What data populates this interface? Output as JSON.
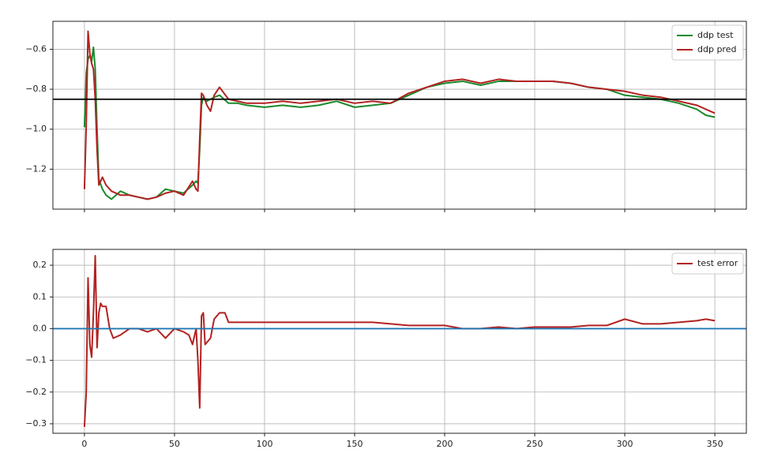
{
  "chart_data": [
    {
      "type": "line",
      "x": [
        0,
        1,
        2,
        3,
        4,
        5,
        6,
        7,
        8,
        10,
        12,
        15,
        20,
        25,
        30,
        35,
        40,
        45,
        50,
        55,
        60,
        62,
        63,
        64,
        65,
        66,
        68,
        70,
        72,
        75,
        80,
        85,
        90,
        100,
        110,
        120,
        130,
        140,
        150,
        160,
        170,
        180,
        190,
        200,
        210,
        220,
        230,
        240,
        250,
        260,
        270,
        280,
        290,
        300,
        310,
        320,
        330,
        340,
        345,
        350
      ],
      "series": [
        {
          "name": "ddp test",
          "color": "#1a8a2a",
          "values": [
            -0.99,
            -0.72,
            -0.65,
            -0.63,
            -0.66,
            -0.59,
            -0.7,
            -1.0,
            -1.25,
            -1.3,
            -1.33,
            -1.35,
            -1.31,
            -1.33,
            -1.34,
            -1.35,
            -1.34,
            -1.3,
            -1.31,
            -1.32,
            -1.28,
            -1.26,
            -1.27,
            -1.1,
            -0.88,
            -0.84,
            -0.86,
            -0.85,
            -0.84,
            -0.83,
            -0.87,
            -0.87,
            -0.88,
            -0.89,
            -0.88,
            -0.89,
            -0.88,
            -0.86,
            -0.89,
            -0.88,
            -0.87,
            -0.83,
            -0.79,
            -0.77,
            -0.76,
            -0.78,
            -0.76,
            -0.76,
            -0.76,
            -0.76,
            -0.77,
            -0.79,
            -0.8,
            -0.83,
            -0.84,
            -0.85,
            -0.87,
            -0.9,
            -0.93,
            -0.94
          ]
        },
        {
          "name": "ddp pred",
          "color": "#b22222",
          "values": [
            -1.3,
            -0.98,
            -0.51,
            -0.62,
            -0.67,
            -0.7,
            -0.85,
            -1.1,
            -1.28,
            -1.24,
            -1.28,
            -1.31,
            -1.33,
            -1.33,
            -1.34,
            -1.35,
            -1.34,
            -1.32,
            -1.31,
            -1.33,
            -1.26,
            -1.3,
            -1.31,
            -1.05,
            -0.82,
            -0.83,
            -0.88,
            -0.91,
            -0.83,
            -0.79,
            -0.85,
            -0.86,
            -0.87,
            -0.87,
            -0.86,
            -0.87,
            -0.86,
            -0.85,
            -0.87,
            -0.86,
            -0.87,
            -0.82,
            -0.79,
            -0.76,
            -0.75,
            -0.77,
            -0.75,
            -0.76,
            -0.76,
            -0.76,
            -0.77,
            -0.79,
            -0.8,
            -0.81,
            -0.83,
            -0.84,
            -0.86,
            -0.88,
            -0.9,
            -0.92
          ]
        }
      ],
      "hline": {
        "value": -0.85,
        "color": "#000000"
      },
      "xlim": [
        -17.5,
        367.5
      ],
      "xticks": [
        0,
        50,
        100,
        150,
        200,
        250,
        300,
        350
      ],
      "ylim": [
        -1.4,
        -0.46
      ],
      "yticks": [
        {
          "value": -1.2,
          "label": "−1.2"
        },
        {
          "value": -1.0,
          "label": "−1.0"
        },
        {
          "value": -0.8,
          "label": "−0.8"
        },
        {
          "value": -0.6,
          "label": "−0.6"
        }
      ],
      "grid": true,
      "legend": "upper right"
    },
    {
      "type": "line",
      "x": [
        0,
        1,
        2,
        3,
        4,
        5,
        6,
        7,
        8,
        9,
        10,
        12,
        14,
        16,
        20,
        25,
        30,
        35,
        40,
        45,
        50,
        55,
        58,
        60,
        62,
        63,
        64,
        65,
        66,
        67,
        70,
        72,
        75,
        78,
        80,
        90,
        100,
        110,
        120,
        130,
        140,
        150,
        160,
        170,
        180,
        190,
        200,
        210,
        220,
        230,
        240,
        250,
        260,
        270,
        280,
        290,
        300,
        310,
        320,
        330,
        340,
        345,
        350
      ],
      "series": [
        {
          "name": "test error",
          "color": "#b22222",
          "values": [
            -0.31,
            -0.2,
            0.16,
            -0.05,
            -0.09,
            0.05,
            0.23,
            -0.06,
            0.05,
            0.08,
            0.07,
            0.07,
            0.0,
            -0.03,
            -0.02,
            0.0,
            0.0,
            -0.01,
            0.0,
            -0.03,
            0.0,
            -0.01,
            -0.02,
            -0.05,
            0.0,
            -0.1,
            -0.25,
            0.04,
            0.05,
            -0.05,
            -0.03,
            0.03,
            0.05,
            0.05,
            0.02,
            0.02,
            0.02,
            0.02,
            0.02,
            0.02,
            0.02,
            0.02,
            0.02,
            0.015,
            0.01,
            0.01,
            0.01,
            0.0,
            0.0,
            0.005,
            0.0,
            0.005,
            0.005,
            0.005,
            0.01,
            0.01,
            0.03,
            0.015,
            0.015,
            0.02,
            0.025,
            0.03,
            0.025
          ]
        }
      ],
      "hline": {
        "value": 0,
        "color": "#1f77b4"
      },
      "xlim": [
        -17.5,
        367.5
      ],
      "xticks": [
        0,
        50,
        100,
        150,
        200,
        250,
        300,
        350
      ],
      "ylim": [
        -0.33,
        0.25
      ],
      "yticks": [
        {
          "value": -0.3,
          "label": "−0.3"
        },
        {
          "value": -0.2,
          "label": "−0.2"
        },
        {
          "value": -0.1,
          "label": "−0.1"
        },
        {
          "value": 0,
          "label": "0.0"
        },
        0.1,
        0.2
      ],
      "grid": true,
      "legend": "upper right",
      "xticklabels": true
    }
  ]
}
